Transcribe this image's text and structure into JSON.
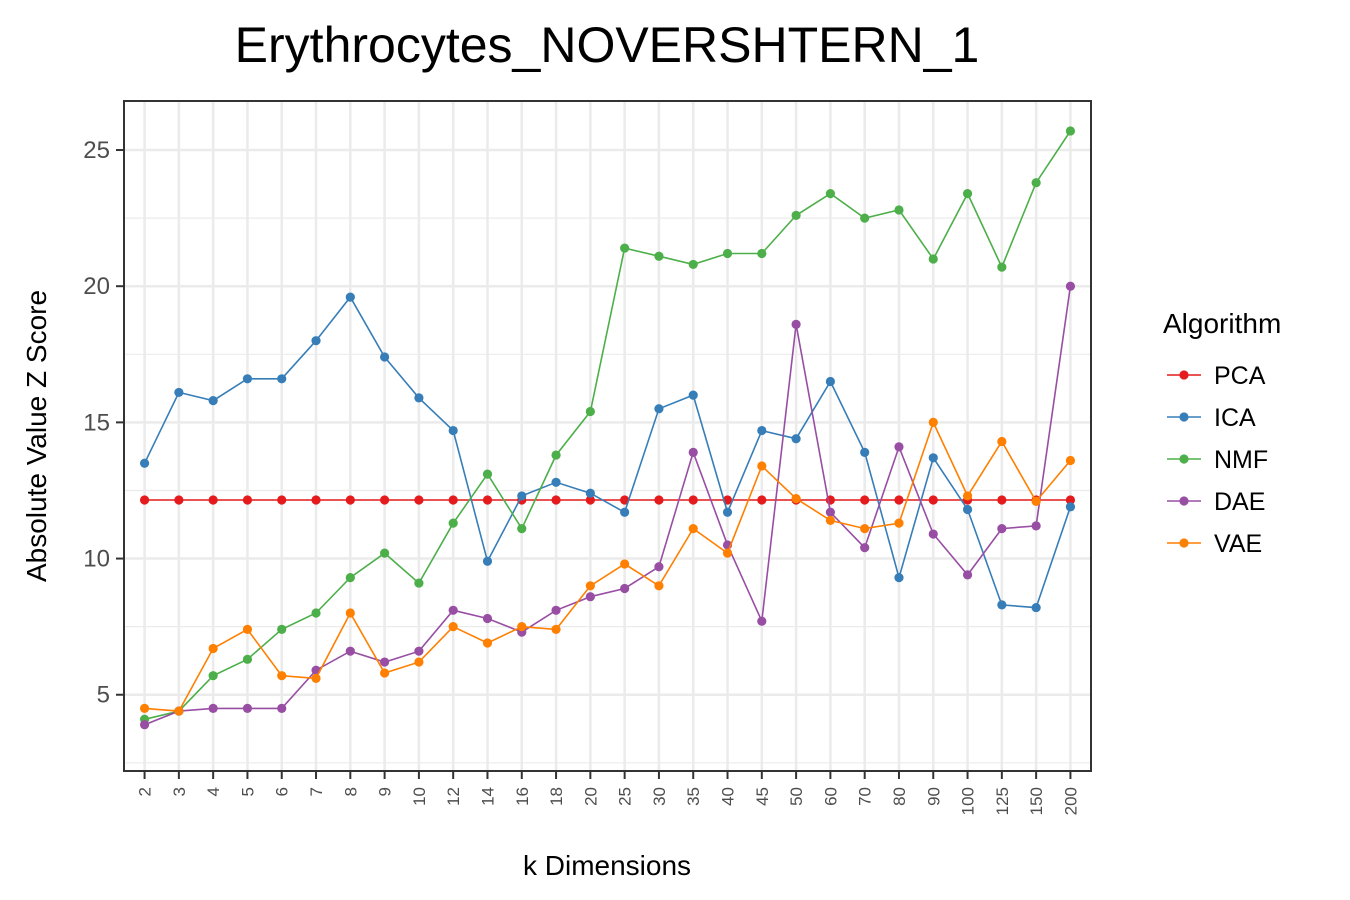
{
  "chart_data": {
    "type": "line",
    "title": "Erythrocytes_NOVERSHTERN_1",
    "xlabel": "k Dimensions",
    "ylabel": "Absolute Value Z Score",
    "categories": [
      "2",
      "3",
      "4",
      "5",
      "6",
      "7",
      "8",
      "9",
      "10",
      "12",
      "14",
      "16",
      "18",
      "20",
      "25",
      "30",
      "35",
      "40",
      "45",
      "50",
      "60",
      "70",
      "80",
      "90",
      "100",
      "125",
      "150",
      "200"
    ],
    "yticks": [
      5,
      10,
      15,
      20,
      25
    ],
    "ylim": [
      2.2,
      26.8
    ],
    "grid": true,
    "legend": {
      "title": "Algorithm",
      "position": "right"
    },
    "series": [
      {
        "name": "PCA",
        "color": "#E41A1C",
        "values": [
          12.15,
          12.15,
          12.15,
          12.15,
          12.15,
          12.15,
          12.15,
          12.15,
          12.15,
          12.15,
          12.15,
          12.15,
          12.15,
          12.15,
          12.15,
          12.15,
          12.15,
          12.15,
          12.15,
          12.15,
          12.15,
          12.15,
          12.15,
          12.15,
          12.15,
          12.15,
          12.15,
          12.15
        ]
      },
      {
        "name": "ICA",
        "color": "#377EB8",
        "values": [
          13.5,
          16.1,
          15.8,
          16.6,
          16.6,
          18.0,
          19.6,
          17.4,
          15.9,
          14.7,
          9.9,
          12.3,
          12.8,
          12.4,
          11.7,
          15.5,
          16.0,
          11.7,
          14.7,
          14.4,
          16.5,
          13.9,
          9.3,
          13.7,
          11.8,
          8.3,
          8.2,
          11.9
        ]
      },
      {
        "name": "NMF",
        "color": "#4DAF4A",
        "values": [
          4.1,
          4.4,
          5.7,
          6.3,
          7.4,
          8.0,
          9.3,
          10.2,
          9.1,
          11.3,
          13.1,
          11.1,
          13.8,
          15.4,
          21.4,
          21.1,
          20.8,
          21.2,
          21.2,
          22.6,
          23.4,
          22.5,
          22.8,
          21.0,
          23.4,
          20.7,
          23.8,
          25.7
        ]
      },
      {
        "name": "DAE",
        "color": "#984EA3",
        "values": [
          3.9,
          4.4,
          4.5,
          4.5,
          4.5,
          5.9,
          6.6,
          6.2,
          6.6,
          8.1,
          7.8,
          7.3,
          8.1,
          8.6,
          8.9,
          9.7,
          13.9,
          10.5,
          7.7,
          18.6,
          11.7,
          10.4,
          14.1,
          10.9,
          9.4,
          11.1,
          11.2,
          20.0
        ]
      },
      {
        "name": "VAE",
        "color": "#FF7F00",
        "values": [
          4.5,
          4.4,
          6.7,
          7.4,
          5.7,
          5.6,
          8.0,
          5.8,
          6.2,
          7.5,
          6.9,
          7.5,
          7.4,
          9.0,
          9.8,
          9.0,
          11.1,
          10.2,
          13.4,
          12.2,
          11.4,
          11.1,
          11.3,
          15.0,
          12.3,
          14.3,
          12.1,
          13.6
        ]
      }
    ]
  }
}
